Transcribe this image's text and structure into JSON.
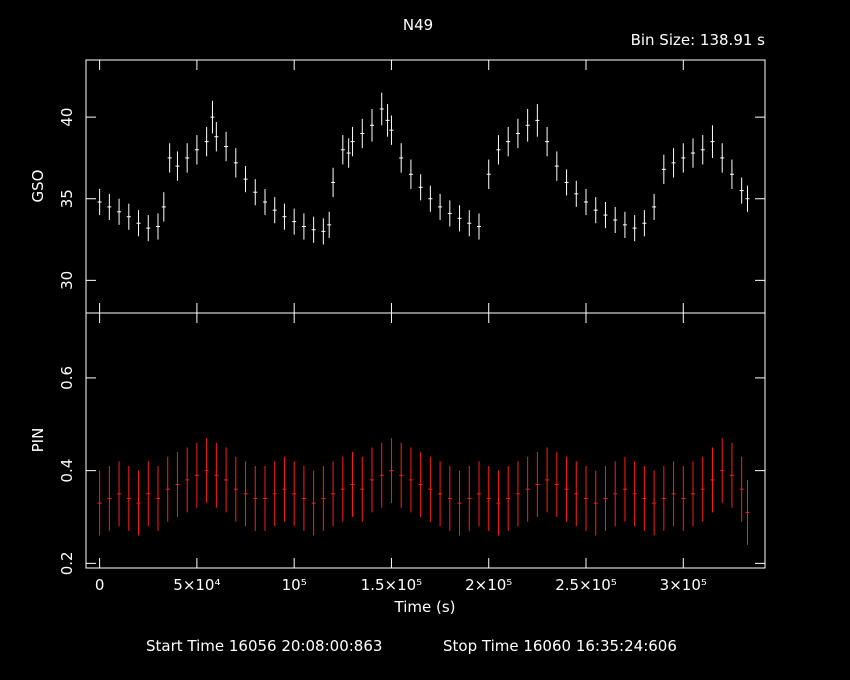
{
  "header": {
    "title": "N49",
    "bin_size": "Bin Size: 138.91 s"
  },
  "footer": {
    "start": "Start Time 16056 20:08:00:863",
    "stop": "Stop Time 16060 16:35:24:606"
  },
  "colors": {
    "background": "#000000",
    "axes": "#ffffff",
    "gso": "#ffffff",
    "pin": "#ff1a1a"
  },
  "chart_data": {
    "type": "scatter",
    "xlabel": "Time (s)",
    "xlim": [
      -7000,
      342000
    ],
    "x_ticks": [
      {
        "value": 0,
        "label": "0"
      },
      {
        "value": 50000,
        "label": "5×10⁴"
      },
      {
        "value": 100000,
        "label": "10⁵"
      },
      {
        "value": 150000,
        "label": "1.5×10⁵"
      },
      {
        "value": 200000,
        "label": "2×10⁵"
      },
      {
        "value": 250000,
        "label": "2.5×10⁵"
      },
      {
        "value": 300000,
        "label": "3×10⁵"
      }
    ],
    "panels": [
      {
        "name": "GSO",
        "ylabel": "GSO",
        "ylim": [
          28,
          43.5
        ],
        "y_ticks": [
          30,
          35,
          40
        ],
        "color": "#ffffff",
        "series": {
          "x": [
            0,
            5000,
            10000,
            15000,
            20000,
            25000,
            30000,
            33000,
            36000,
            40000,
            45000,
            50000,
            55000,
            58000,
            60000,
            65000,
            70000,
            75000,
            80000,
            85000,
            90000,
            95000,
            100000,
            105000,
            110000,
            115000,
            118000,
            120000,
            125000,
            128000,
            130000,
            135000,
            140000,
            145000,
            148000,
            150000,
            155000,
            160000,
            165000,
            170000,
            175000,
            180000,
            185000,
            190000,
            195000,
            200000,
            205000,
            210000,
            215000,
            220000,
            225000,
            230000,
            235000,
            240000,
            245000,
            250000,
            255000,
            260000,
            265000,
            270000,
            275000,
            280000,
            285000,
            290000,
            295000,
            300000,
            305000,
            310000,
            315000,
            320000,
            325000,
            330000,
            333000
          ],
          "y": [
            34.8,
            34.5,
            34.2,
            33.9,
            33.5,
            33.2,
            33.3,
            34.5,
            37.5,
            37.0,
            37.5,
            38.0,
            38.5,
            40.0,
            38.8,
            38.2,
            37.2,
            36.2,
            35.4,
            34.8,
            34.3,
            33.9,
            33.6,
            33.3,
            33.1,
            33.0,
            33.4,
            36.0,
            38.0,
            37.8,
            38.5,
            39.0,
            39.5,
            40.5,
            39.8,
            39.2,
            37.5,
            36.5,
            35.7,
            35.0,
            34.5,
            34.1,
            33.8,
            33.5,
            33.3,
            36.5,
            38.0,
            38.5,
            39.0,
            39.5,
            39.8,
            38.5,
            37.0,
            36.0,
            35.3,
            34.8,
            34.3,
            34.0,
            33.7,
            33.4,
            33.2,
            33.5,
            34.5,
            36.8,
            37.2,
            37.5,
            37.8,
            38.0,
            38.5,
            37.5,
            36.5,
            35.5,
            35.0
          ],
          "err": [
            0.8,
            0.8,
            0.8,
            0.8,
            0.8,
            0.8,
            0.8,
            0.9,
            0.9,
            0.9,
            0.9,
            0.9,
            0.9,
            1.0,
            0.9,
            0.9,
            0.9,
            0.8,
            0.8,
            0.8,
            0.8,
            0.8,
            0.8,
            0.8,
            0.8,
            0.8,
            0.8,
            0.9,
            0.9,
            0.9,
            0.9,
            0.9,
            1.0,
            1.0,
            1.0,
            0.9,
            0.9,
            0.9,
            0.8,
            0.8,
            0.8,
            0.8,
            0.8,
            0.8,
            0.8,
            0.9,
            0.9,
            0.9,
            0.9,
            1.0,
            1.0,
            0.9,
            0.9,
            0.8,
            0.8,
            0.8,
            0.8,
            0.8,
            0.8,
            0.8,
            0.8,
            0.8,
            0.8,
            0.9,
            0.9,
            0.9,
            0.9,
            0.9,
            1.0,
            0.9,
            0.9,
            0.8,
            0.8
          ]
        }
      },
      {
        "name": "PIN",
        "ylabel": "PIN",
        "ylim": [
          0.19,
          0.74
        ],
        "y_ticks": [
          0.2,
          0.4,
          0.6
        ],
        "color": "#ff1a1a",
        "series": {
          "x": [
            0,
            5000,
            10000,
            15000,
            20000,
            25000,
            30000,
            35000,
            40000,
            45000,
            50000,
            55000,
            60000,
            65000,
            70000,
            75000,
            80000,
            85000,
            90000,
            95000,
            100000,
            105000,
            110000,
            115000,
            120000,
            125000,
            130000,
            135000,
            140000,
            145000,
            150000,
            155000,
            160000,
            165000,
            170000,
            175000,
            180000,
            185000,
            190000,
            195000,
            200000,
            205000,
            210000,
            215000,
            220000,
            225000,
            230000,
            235000,
            240000,
            245000,
            250000,
            255000,
            260000,
            265000,
            270000,
            275000,
            280000,
            285000,
            290000,
            295000,
            300000,
            305000,
            310000,
            315000,
            320000,
            325000,
            330000,
            333000
          ],
          "y": [
            0.33,
            0.34,
            0.35,
            0.34,
            0.33,
            0.35,
            0.34,
            0.36,
            0.37,
            0.38,
            0.39,
            0.4,
            0.39,
            0.38,
            0.36,
            0.35,
            0.34,
            0.34,
            0.35,
            0.36,
            0.35,
            0.34,
            0.33,
            0.34,
            0.35,
            0.36,
            0.37,
            0.36,
            0.38,
            0.39,
            0.4,
            0.39,
            0.38,
            0.37,
            0.36,
            0.35,
            0.34,
            0.33,
            0.34,
            0.35,
            0.34,
            0.33,
            0.34,
            0.35,
            0.36,
            0.37,
            0.38,
            0.37,
            0.36,
            0.35,
            0.34,
            0.33,
            0.34,
            0.35,
            0.36,
            0.35,
            0.34,
            0.33,
            0.34,
            0.35,
            0.34,
            0.35,
            0.36,
            0.38,
            0.4,
            0.39,
            0.36,
            0.31
          ],
          "err": [
            0.07,
            0.07,
            0.07,
            0.07,
            0.07,
            0.07,
            0.07,
            0.07,
            0.07,
            0.07,
            0.07,
            0.07,
            0.07,
            0.07,
            0.07,
            0.07,
            0.07,
            0.07,
            0.07,
            0.07,
            0.07,
            0.07,
            0.07,
            0.07,
            0.07,
            0.07,
            0.07,
            0.07,
            0.07,
            0.07,
            0.07,
            0.07,
            0.07,
            0.07,
            0.07,
            0.07,
            0.07,
            0.07,
            0.07,
            0.07,
            0.07,
            0.07,
            0.07,
            0.07,
            0.07,
            0.07,
            0.07,
            0.07,
            0.07,
            0.07,
            0.07,
            0.07,
            0.07,
            0.07,
            0.07,
            0.07,
            0.07,
            0.07,
            0.07,
            0.07,
            0.07,
            0.07,
            0.07,
            0.07,
            0.07,
            0.07,
            0.07,
            0.07
          ]
        }
      }
    ]
  }
}
